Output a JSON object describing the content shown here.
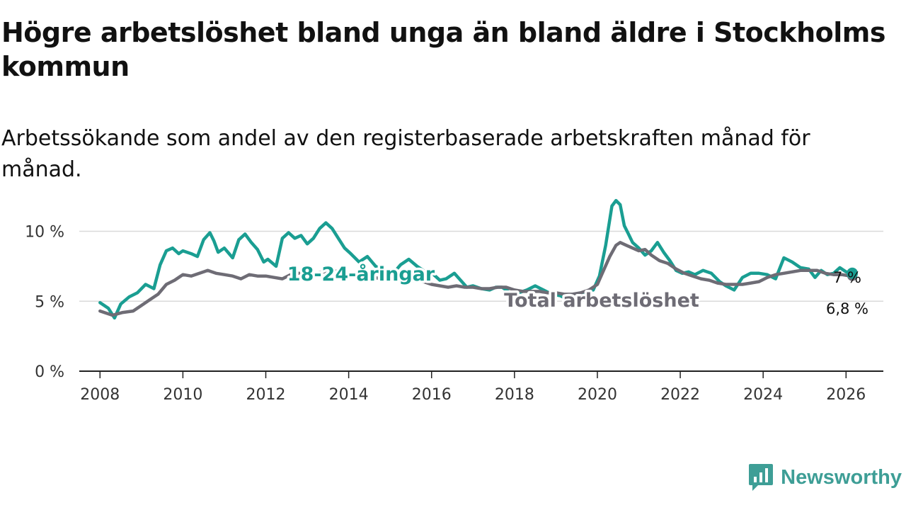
{
  "header": {
    "title": "Högre arbetslöshet bland unga än bland äldre i Stockholms kommun",
    "subtitle": "Arbetssökande som andel av den registerbaserade arbetskraften månad för månad."
  },
  "brand": {
    "name": "Newsworthy",
    "icon": "newsworthy-logo-icon"
  },
  "colors": {
    "youth": "#1a9e92",
    "total": "#6e6c75",
    "grid": "#d9d9d9",
    "axis": "#222222",
    "brand": "#3e9e96"
  },
  "chart_data": {
    "type": "line",
    "title": "Högre arbetslöshet bland unga än bland äldre i Stockholms kommun",
    "xlabel": "",
    "ylabel": "",
    "xlim": [
      2007.5,
      2026.9
    ],
    "ylim": [
      0,
      12
    ],
    "y_ticks": [
      0,
      5,
      10
    ],
    "y_tick_labels": [
      "0 %",
      "5 %",
      "10 %"
    ],
    "x_ticks": [
      2008,
      2010,
      2012,
      2014,
      2016,
      2018,
      2020,
      2022,
      2024,
      2026
    ],
    "x_tick_labels": [
      "2008",
      "2010",
      "2012",
      "2014",
      "2016",
      "2018",
      "2020",
      "2022",
      "2024",
      "2026"
    ],
    "grid": true,
    "series": [
      {
        "name": "18-24-åringar",
        "label": "18-24-åringar",
        "end_label": "7 %",
        "x": [
          2008.0,
          2008.2,
          2008.35,
          2008.5,
          2008.7,
          2008.9,
          2009.1,
          2009.3,
          2009.45,
          2009.6,
          2009.75,
          2009.9,
          2010.0,
          2010.2,
          2010.35,
          2010.5,
          2010.65,
          2010.75,
          2010.85,
          2011.0,
          2011.2,
          2011.35,
          2011.5,
          2011.65,
          2011.8,
          2011.95,
          2012.05,
          2012.25,
          2012.4,
          2012.55,
          2012.7,
          2012.85,
          2013.0,
          2013.15,
          2013.3,
          2013.45,
          2013.6,
          2013.75,
          2013.9,
          2014.05,
          2014.25,
          2014.45,
          2014.65,
          2014.85,
          2015.05,
          2015.25,
          2015.45,
          2015.65,
          2015.85,
          2016.05,
          2016.2,
          2016.35,
          2016.55,
          2016.7,
          2016.85,
          2017.0,
          2017.2,
          2017.4,
          2017.55,
          2017.7,
          2017.9,
          2018.1,
          2018.3,
          2018.5,
          2018.7,
          2018.9,
          2019.1,
          2019.3,
          2019.5,
          2019.7,
          2019.9,
          2020.05,
          2020.2,
          2020.35,
          2020.45,
          2020.55,
          2020.65,
          2020.75,
          2020.85,
          2021.0,
          2021.15,
          2021.3,
          2021.45,
          2021.6,
          2021.75,
          2021.9,
          2022.05,
          2022.2,
          2022.35,
          2022.55,
          2022.75,
          2022.95,
          2023.1,
          2023.3,
          2023.5,
          2023.7,
          2023.9,
          2024.1,
          2024.3,
          2024.5,
          2024.7,
          2024.9,
          2025.1,
          2025.25,
          2025.4,
          2025.55,
          2025.7,
          2025.85,
          2026.0,
          2026.15
        ],
        "values": [
          4.9,
          4.5,
          3.8,
          4.8,
          5.3,
          5.6,
          6.2,
          5.9,
          7.6,
          8.6,
          8.8,
          8.4,
          8.6,
          8.4,
          8.2,
          9.4,
          9.9,
          9.3,
          8.5,
          8.8,
          8.1,
          9.4,
          9.8,
          9.2,
          8.7,
          7.8,
          8.0,
          7.5,
          9.5,
          9.9,
          9.5,
          9.7,
          9.1,
          9.5,
          10.2,
          10.6,
          10.2,
          9.5,
          8.8,
          8.4,
          7.8,
          8.2,
          7.5,
          7.2,
          6.9,
          7.6,
          8.0,
          7.5,
          7.1,
          6.9,
          6.5,
          6.6,
          7.0,
          6.5,
          6.0,
          6.1,
          5.9,
          5.8,
          6.0,
          6.0,
          5.6,
          5.6,
          5.8,
          6.1,
          5.8,
          5.5,
          5.4,
          5.1,
          5.0,
          5.6,
          5.8,
          6.8,
          9.0,
          11.8,
          12.2,
          11.9,
          10.4,
          9.8,
          9.2,
          8.8,
          8.3,
          8.6,
          9.2,
          8.5,
          7.9,
          7.2,
          7.0,
          7.1,
          6.9,
          7.2,
          7.0,
          6.4,
          6.1,
          5.8,
          6.7,
          7.0,
          7.0,
          6.9,
          6.6,
          8.1,
          7.8,
          7.4,
          7.3,
          6.7,
          7.2,
          6.9,
          7.0,
          7.4,
          7.1,
          7.0
        ]
      },
      {
        "name": "Total arbetslöshet",
        "label": "Total arbetslöshet",
        "end_label": "6,8 %",
        "x": [
          2008.0,
          2008.3,
          2008.55,
          2008.8,
          2009.0,
          2009.2,
          2009.4,
          2009.6,
          2009.8,
          2010.0,
          2010.2,
          2010.4,
          2010.6,
          2010.8,
          2011.0,
          2011.2,
          2011.4,
          2011.6,
          2011.8,
          2012.0,
          2012.2,
          2012.4,
          2012.6,
          2012.8,
          2013.0,
          2013.2,
          2013.4,
          2013.6,
          2013.8,
          2014.0,
          2014.2,
          2014.4,
          2014.6,
          2014.8,
          2015.0,
          2015.2,
          2015.4,
          2015.6,
          2015.8,
          2016.0,
          2016.2,
          2016.4,
          2016.6,
          2016.8,
          2017.0,
          2017.2,
          2017.4,
          2017.6,
          2017.8,
          2018.0,
          2018.2,
          2018.4,
          2018.6,
          2018.8,
          2019.0,
          2019.2,
          2019.4,
          2019.6,
          2019.8,
          2020.0,
          2020.15,
          2020.3,
          2020.45,
          2020.55,
          2020.7,
          2020.85,
          2021.0,
          2021.15,
          2021.3,
          2021.5,
          2021.7,
          2021.9,
          2022.1,
          2022.3,
          2022.5,
          2022.7,
          2022.9,
          2023.1,
          2023.3,
          2023.5,
          2023.7,
          2023.9,
          2024.1,
          2024.3,
          2024.5,
          2024.7,
          2024.9,
          2025.1,
          2025.3,
          2025.5,
          2025.7,
          2025.9,
          2026.1,
          2026.15
        ],
        "values": [
          4.3,
          4.0,
          4.2,
          4.3,
          4.7,
          5.1,
          5.5,
          6.2,
          6.5,
          6.9,
          6.8,
          7.0,
          7.2,
          7.0,
          6.9,
          6.8,
          6.6,
          6.9,
          6.8,
          6.8,
          6.7,
          6.6,
          6.9,
          7.0,
          7.0,
          7.0,
          7.1,
          7.2,
          7.1,
          6.9,
          6.7,
          6.6,
          6.7,
          6.6,
          6.5,
          6.5,
          6.4,
          6.5,
          6.4,
          6.2,
          6.1,
          6.0,
          6.1,
          6.0,
          6.0,
          5.9,
          5.9,
          6.0,
          6.0,
          5.8,
          5.7,
          5.7,
          5.7,
          5.6,
          5.6,
          5.5,
          5.5,
          5.6,
          5.8,
          6.2,
          7.2,
          8.2,
          9.0,
          9.2,
          9.0,
          8.8,
          8.6,
          8.7,
          8.3,
          7.9,
          7.7,
          7.3,
          7.0,
          6.8,
          6.6,
          6.5,
          6.3,
          6.2,
          6.2,
          6.2,
          6.3,
          6.4,
          6.7,
          6.9,
          7.0,
          7.1,
          7.2,
          7.2,
          7.2,
          7.0,
          6.9,
          6.9,
          6.8,
          6.8
        ]
      }
    ]
  }
}
